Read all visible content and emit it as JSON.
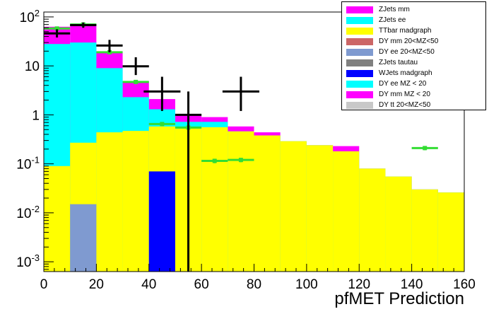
{
  "chart_data": {
    "type": "bar",
    "subtype": "stacked-histogram-log",
    "xlabel": "pfMET Prediction",
    "ylabel": "",
    "xlim": [
      0,
      160
    ],
    "ylim_log10": [
      -3.2,
      2.1
    ],
    "log_y": true,
    "x_ticks": [
      "0",
      "20",
      "40",
      "60",
      "80",
      "100",
      "120",
      "140",
      "160"
    ],
    "y_ticks": [
      {
        "base": "10",
        "exp": "2",
        "v": 100
      },
      {
        "base": "10",
        "exp": "",
        "v": 10
      },
      {
        "base": "1",
        "exp": "",
        "v": 1
      },
      {
        "base": "10",
        "exp": "-1",
        "v": 0.1
      },
      {
        "base": "10",
        "exp": "-2",
        "v": 0.01
      },
      {
        "base": "10",
        "exp": "-3",
        "v": 0.001
      }
    ],
    "bin_width": 10,
    "bin_edges": [
      0,
      10,
      20,
      30,
      40,
      50,
      60,
      70,
      80,
      90,
      100,
      110,
      120,
      130,
      140,
      150,
      160
    ],
    "stack_cumulative": [
      {
        "name": "TTbar madgraph",
        "color": "#ffff00",
        "values": [
          0.09,
          0.27,
          0.44,
          0.47,
          0.58,
          0.55,
          0.56,
          0.46,
          0.38,
          0.29,
          0.24,
          0.18,
          0.08,
          0.055,
          0.03,
          0.026
        ]
      },
      {
        "name": "ZJets ee",
        "color": "#00ffff",
        "values": [
          28,
          30,
          9.0,
          2.3,
          1.3,
          0.72,
          0.72,
          0.46,
          0.38,
          0.29,
          0.24,
          0.18,
          0.08,
          0.055,
          0.03,
          0.026
        ]
      },
      {
        "name": "ZJets mm",
        "color": "#ff00ff",
        "values": [
          63,
          70,
          19.5,
          4.8,
          2.1,
          1.0,
          0.9,
          0.58,
          0.44,
          0.29,
          0.24,
          0.23,
          0.08,
          0.055,
          0.03,
          0.026
        ]
      }
    ],
    "overlay_bars": [
      {
        "name": "DY ee 20<MZ<50",
        "color": "#7f9ad0",
        "bin": [
          10,
          20
        ],
        "value": 0.015
      },
      {
        "name": "WJets madgraph",
        "color": "#0000ff",
        "bin": [
          40,
          50
        ],
        "value": 0.07
      }
    ],
    "green_points": [
      {
        "x": 5,
        "y": 58,
        "xerr": 5,
        "yerr": 0
      },
      {
        "x": 15,
        "y": 70,
        "xerr": 5,
        "yerr": 0
      },
      {
        "x": 25,
        "y": 19,
        "xerr": 5,
        "yerr": 0
      },
      {
        "x": 35,
        "y": 4.7,
        "xerr": 5,
        "yerr": 0
      },
      {
        "x": 45,
        "y": 0.65,
        "xerr": 5,
        "yerr": 0.06
      },
      {
        "x": 55,
        "y": 0.55,
        "xerr": 5,
        "yerr": 0.04
      },
      {
        "x": 65,
        "y": 0.115,
        "xerr": 5,
        "yerr": 0.012
      },
      {
        "x": 75,
        "y": 0.12,
        "xerr": 5,
        "yerr": 0.012
      },
      {
        "x": 145,
        "y": 0.21,
        "xerr": 5,
        "yerr": 0.02
      }
    ],
    "black_points": [
      {
        "x": 5,
        "y": 46,
        "xerr": 5,
        "ylo": 38,
        "yhi": 56
      },
      {
        "x": 15,
        "y": 68,
        "xerr": 5,
        "ylo": 60,
        "yhi": 77
      },
      {
        "x": 25,
        "y": 26,
        "xerr": 5,
        "ylo": 19,
        "yhi": 34
      },
      {
        "x": 35,
        "y": 9.8,
        "xerr": 5,
        "ylo": 6.5,
        "yhi": 15
      },
      {
        "x": 45,
        "y": 3.0,
        "xerr": 7,
        "ylo": 1.2,
        "yhi": 6.0
      },
      {
        "x": 55,
        "y": 1.0,
        "xerr": 5,
        "ylo": 0.0006,
        "yhi": 3.0
      },
      {
        "x": 75,
        "y": 3.0,
        "xerr": 7,
        "ylo": 1.2,
        "yhi": 6.0
      }
    ],
    "legend": [
      {
        "label": "ZJets mm",
        "color": "#ff00ff"
      },
      {
        "label": "ZJets ee",
        "color": "#00ffff"
      },
      {
        "label": "TTbar madgraph",
        "color": "#ffff00"
      },
      {
        "label": "DY mm 20<MZ<50",
        "color": "#cc6666"
      },
      {
        "label": "DY ee 20<MZ<50",
        "color": "#7f9ad0"
      },
      {
        "label": "ZJets tautau",
        "color": "#808080"
      },
      {
        "label": "WJets madgraph",
        "color": "#0000ff"
      },
      {
        "label": "DY ee MZ < 20",
        "color": "#00ffff"
      },
      {
        "label": "DY mm MZ < 20",
        "color": "#ff00ff"
      },
      {
        "label": "DY tt 20<MZ<50",
        "color": "#c8c8c8"
      }
    ],
    "legend_position": "top-right",
    "grid": false
  }
}
